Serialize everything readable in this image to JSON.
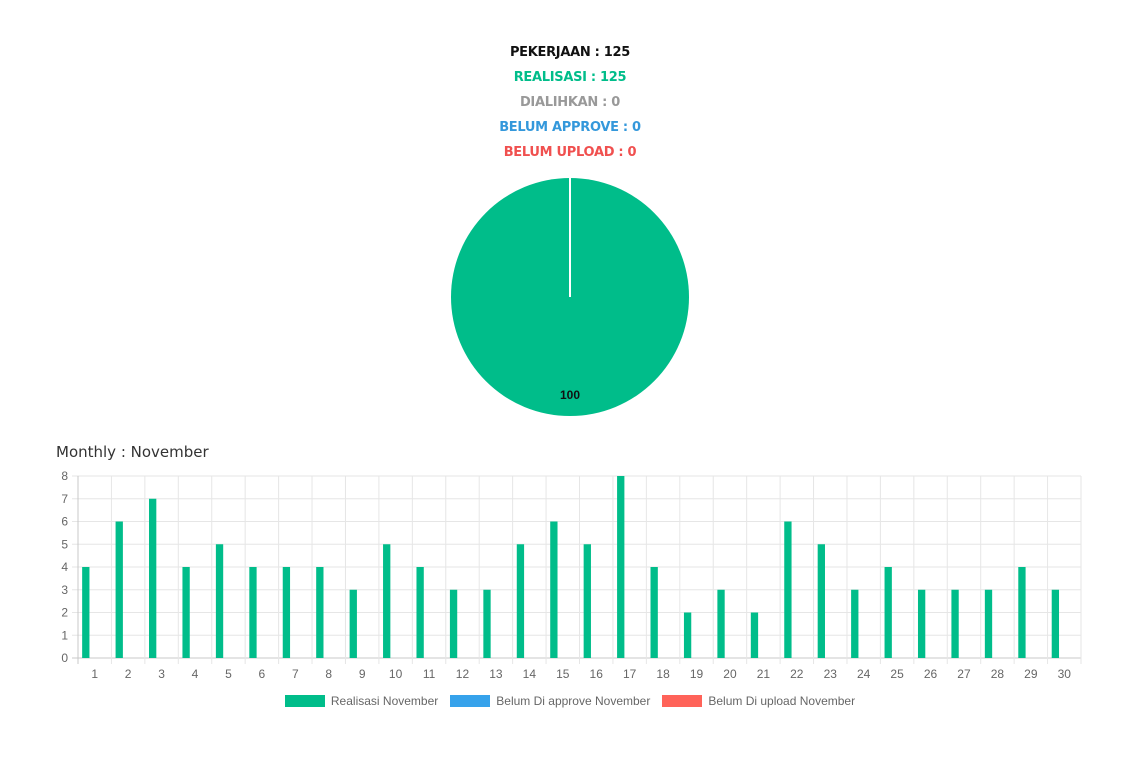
{
  "stats": {
    "pekerjaan": "PEKERJAAN : 125",
    "realisasi": "REALISASI : 125",
    "dialihkan": "DIALIHKAN : 0",
    "belum_approve": "BELUM APPROVE : 0",
    "belum_upload": "BELUM UPLOAD : 0"
  },
  "colors": {
    "pekerjaan": "#111111",
    "realisasi": "#00bd8a",
    "dialihkan": "#999999",
    "belum_approve": "#3498db",
    "belum_upload": "#f0504f"
  },
  "monthly_title": "Monthly : November",
  "legend": [
    {
      "label": "Realisasi November",
      "color": "#00bd8a"
    },
    {
      "label": "Belum Di approve November",
      "color": "#36a2eb"
    },
    {
      "label": "Belum Di upload November",
      "color": "#ff6359"
    }
  ],
  "chart_data": [
    {
      "type": "pie",
      "slices": [
        {
          "label": "Realisasi",
          "value": 100,
          "color": "#00bd8a"
        }
      ],
      "data_label": "100"
    },
    {
      "type": "bar",
      "categories": [
        "1",
        "2",
        "3",
        "4",
        "5",
        "6",
        "7",
        "8",
        "9",
        "10",
        "11",
        "12",
        "13",
        "14",
        "15",
        "16",
        "17",
        "18",
        "19",
        "20",
        "21",
        "22",
        "23",
        "24",
        "25",
        "26",
        "27",
        "28",
        "29",
        "30"
      ],
      "series": [
        {
          "name": "Realisasi November",
          "color": "#00bd8a",
          "values": [
            4,
            6,
            7,
            4,
            5,
            4,
            4,
            4,
            3,
            5,
            4,
            3,
            3,
            5,
            6,
            5,
            8,
            4,
            2,
            3,
            2,
            6,
            5,
            3,
            4,
            3,
            3,
            3,
            4,
            3
          ]
        },
        {
          "name": "Belum Di approve November",
          "color": "#36a2eb",
          "values": [
            0,
            0,
            0,
            0,
            0,
            0,
            0,
            0,
            0,
            0,
            0,
            0,
            0,
            0,
            0,
            0,
            0,
            0,
            0,
            0,
            0,
            0,
            0,
            0,
            0,
            0,
            0,
            0,
            0,
            0
          ]
        },
        {
          "name": "Belum Di upload November",
          "color": "#ff6359",
          "values": [
            0,
            0,
            0,
            0,
            0,
            0,
            0,
            0,
            0,
            0,
            0,
            0,
            0,
            0,
            0,
            0,
            0,
            0,
            0,
            0,
            0,
            0,
            0,
            0,
            0,
            0,
            0,
            0,
            0,
            0
          ]
        }
      ],
      "yticks": [
        "0",
        "1",
        "2",
        "3",
        "4",
        "5",
        "6",
        "7",
        "8"
      ],
      "ylim": [
        0,
        8
      ],
      "grid": true,
      "legend_position": "bottom"
    }
  ]
}
